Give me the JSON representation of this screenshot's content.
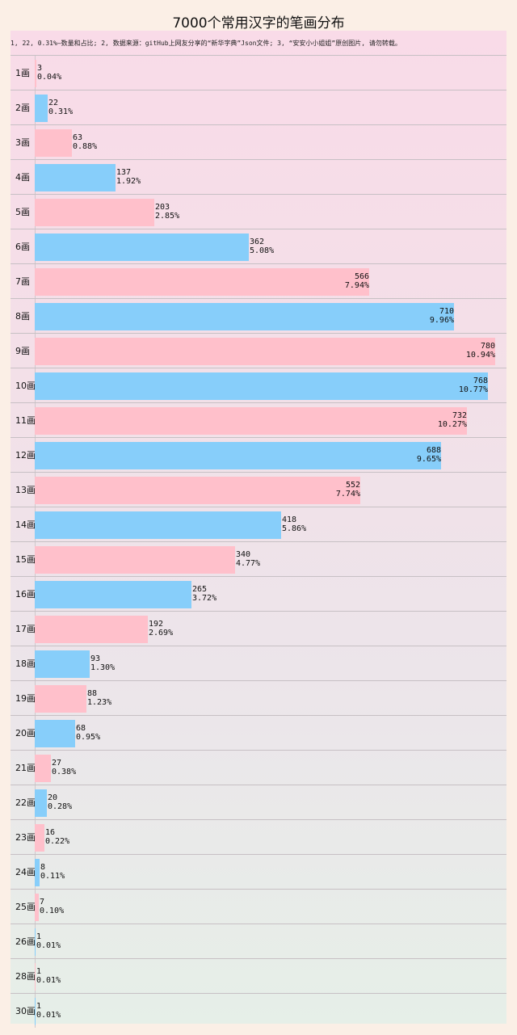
{
  "chart_data": {
    "type": "bar",
    "orientation": "horizontal",
    "title": "7000个常用汉字的笔画分布",
    "note": "1, 22, 0.31%—数量和占比; 2, 数据来源：gitHub上网友分享的“新华字典”Json文件; 3, “安安小小姐姐”原创图片, 请勿转载。",
    "categories": [
      "1画",
      "2画",
      "3画",
      "4画",
      "5画",
      "6画",
      "7画",
      "8画",
      "9画",
      "10画",
      "11画",
      "12画",
      "13画",
      "14画",
      "15画",
      "16画",
      "17画",
      "18画",
      "19画",
      "20画",
      "21画",
      "22画",
      "23画",
      "24画",
      "25画",
      "26画",
      "28画",
      "30画"
    ],
    "values": [
      3,
      22,
      63,
      137,
      203,
      362,
      566,
      710,
      780,
      768,
      732,
      688,
      552,
      418,
      340,
      265,
      192,
      93,
      88,
      68,
      27,
      20,
      16,
      8,
      7,
      1,
      1,
      1
    ],
    "percents": [
      "0.04%",
      "0.31%",
      "0.88%",
      "1.92%",
      "2.85%",
      "5.08%",
      "7.94%",
      "9.96%",
      "10.94%",
      "10.77%",
      "10.27%",
      "9.65%",
      "7.74%",
      "5.86%",
      "4.77%",
      "3.72%",
      "2.69%",
      "1.30%",
      "1.23%",
      "0.95%",
      "0.38%",
      "0.28%",
      "0.22%",
      "0.11%",
      "0.10%",
      "0.01%",
      "0.01%",
      "0.01%"
    ],
    "series_colors": [
      "#ffc0cb",
      "#87cefa"
    ],
    "xlim": [
      0,
      780
    ]
  }
}
